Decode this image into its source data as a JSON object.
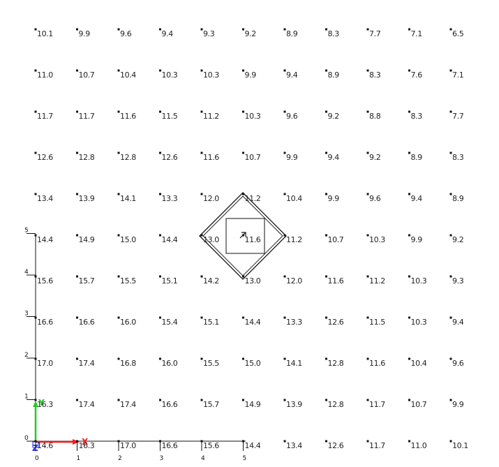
{
  "chart_data": {
    "type": "table",
    "grid_columns": 11,
    "grid_rows": 11,
    "rows": [
      [
        "10.1",
        "9.9",
        "9.6",
        "9.4",
        "9.3",
        "9.2",
        "8.9",
        "8.3",
        "7.7",
        "7.1",
        "6.5"
      ],
      [
        "11.0",
        "10.7",
        "10.4",
        "10.3",
        "10.3",
        "9.9",
        "9.4",
        "8.9",
        "8.3",
        "7.6",
        "7.1"
      ],
      [
        "11.7",
        "11.7",
        "11.6",
        "11.5",
        "11.2",
        "10.3",
        "9.6",
        "9.2",
        "8.8",
        "8.3",
        "7.7"
      ],
      [
        "12.6",
        "12.8",
        "12.8",
        "12.6",
        "11.6",
        "10.7",
        "9.9",
        "9.4",
        "9.2",
        "8.9",
        "8.3"
      ],
      [
        "13.4",
        "13.9",
        "14.1",
        "13.3",
        "12.0",
        "11.2",
        "10.4",
        "9.9",
        "9.6",
        "9.4",
        "8.9"
      ],
      [
        "14.4",
        "14.9",
        "15.0",
        "14.4",
        "13.0",
        "11.6",
        "11.2",
        "10.7",
        "10.3",
        "9.9",
        "9.2"
      ],
      [
        "15.6",
        "15.7",
        "15.5",
        "15.1",
        "14.2",
        "13.0",
        "12.0",
        "11.6",
        "11.2",
        "10.3",
        "9.3"
      ],
      [
        "16.6",
        "16.6",
        "16.0",
        "15.4",
        "15.1",
        "14.4",
        "13.3",
        "12.6",
        "11.5",
        "10.3",
        "9.4"
      ],
      [
        "17.0",
        "17.4",
        "16.8",
        "16.0",
        "15.5",
        "15.0",
        "14.1",
        "12.8",
        "11.6",
        "10.4",
        "9.6"
      ],
      [
        "16.3",
        "17.4",
        "17.4",
        "16.6",
        "15.7",
        "14.9",
        "13.9",
        "12.8",
        "11.7",
        "10.7",
        "9.9"
      ],
      [
        "14.6",
        "16.3",
        "17.0",
        "16.6",
        "15.6",
        "14.4",
        "13.4",
        "12.6",
        "11.7",
        "11.0",
        "10.1"
      ]
    ],
    "x_ticks": [
      "0",
      "1",
      "2",
      "3",
      "4",
      "5"
    ],
    "y_ticks": [
      "0",
      "1",
      "2",
      "3",
      "4",
      "5"
    ],
    "axis_labels": {
      "x": "X",
      "y": "Y",
      "z": "Z"
    },
    "colors": {
      "x_axis": "#ff1a1a",
      "y_axis": "#22cc22",
      "z_axis": "#2233ee",
      "frame": "#111111"
    }
  }
}
